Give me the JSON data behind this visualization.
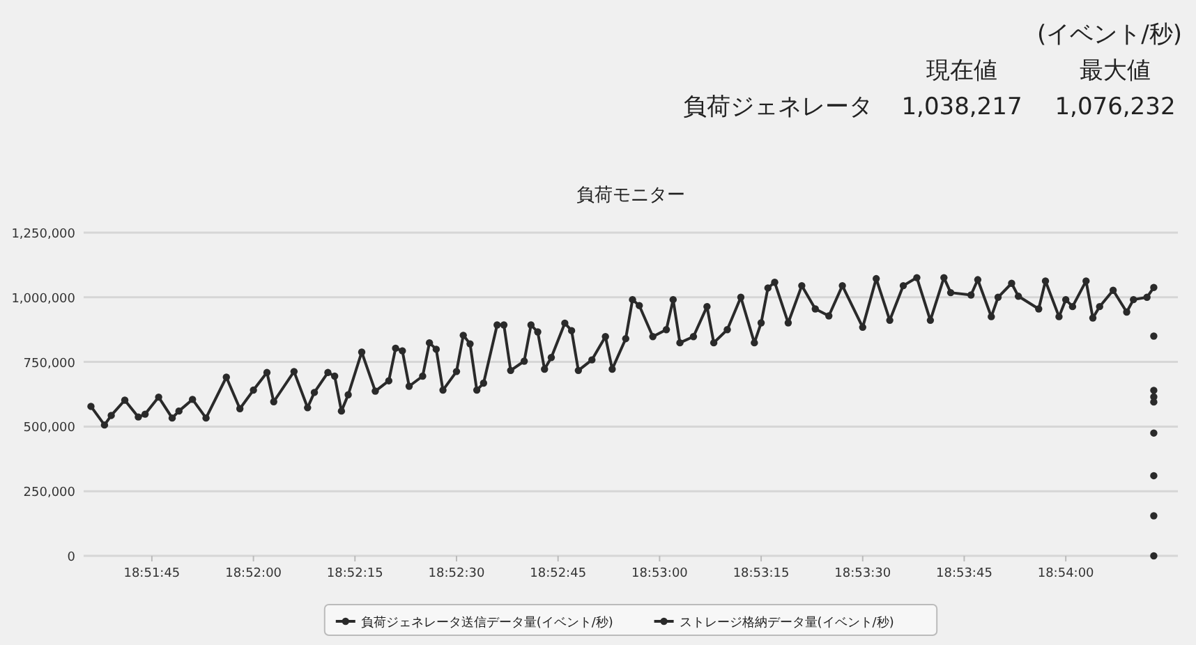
{
  "chart_data": [
    {
      "type": "other",
      "annotations": [
        "(イベント/秒)",
        "現在値",
        "最大値",
        "負荷ジェネレータ",
        "1,038,217",
        "1,076,232"
      ]
    },
    {
      "type": "line",
      "title": "負荷モニター",
      "grid": "y",
      "legend": "bottom",
      "marker": "circle",
      "line_style": "solid",
      "xlim": [
        18.8597,
        18.9046
      ],
      "ylim": [
        0,
        1250000
      ],
      "xticks": [
        {
          "value": 18.8625,
          "label": "18:51:45"
        },
        {
          "value": 18.866667,
          "label": "18:52:00"
        },
        {
          "value": 18.870833,
          "label": "18:52:15"
        },
        {
          "value": 18.875,
          "label": "18:52:30"
        },
        {
          "value": 18.879167,
          "label": "18:52:45"
        },
        {
          "value": 18.883333,
          "label": "18:53:00"
        },
        {
          "value": 18.8875,
          "label": "18:53:15"
        },
        {
          "value": 18.891667,
          "label": "18:53:30"
        },
        {
          "value": 18.895833,
          "label": "18:53:45"
        },
        {
          "value": 18.9,
          "label": "18:54:00"
        }
      ],
      "yticks": [
        {
          "value": 0,
          "label": "0"
        },
        {
          "value": 250000,
          "label": "250,000"
        },
        {
          "value": 500000,
          "label": "500,000"
        },
        {
          "value": 750000,
          "label": "750,000"
        },
        {
          "value": 1000000,
          "label": "1,000,000"
        },
        {
          "value": 1250000,
          "label": "1,250,000"
        }
      ],
      "series": [
        {
          "name": "負荷ジェネレータ送信データ量(イベント/秒)",
          "color": "#2a2a2a",
          "type": "line",
          "x": [
            18.86,
            18.860556,
            18.860833,
            18.861389,
            18.861944,
            18.862222,
            18.862778,
            18.863333,
            18.863611,
            18.864167,
            18.864722,
            18.865556,
            18.866111,
            18.866667,
            18.867222,
            18.8675,
            18.868333,
            18.868889,
            18.869167,
            18.869722,
            18.87,
            18.870278,
            18.870556,
            18.871111,
            18.871667,
            18.872222,
            18.8725,
            18.872778,
            18.873056,
            18.873611,
            18.873889,
            18.874167,
            18.874444,
            18.875,
            18.875278,
            18.875556,
            18.875833,
            18.876111,
            18.876667,
            18.876944,
            18.877222,
            18.877778,
            18.878056,
            18.878333,
            18.878611,
            18.878889,
            18.879444,
            18.879722,
            18.88,
            18.880556,
            18.881111,
            18.881389,
            18.881944,
            18.882222,
            18.8825,
            18.883056,
            18.883611,
            18.883889,
            18.884167,
            18.884722,
            18.885278,
            18.885556,
            18.886111,
            18.886667,
            18.887222,
            18.8875,
            18.887778,
            18.888056,
            18.888611,
            18.889167,
            18.889722,
            18.890278,
            18.890833,
            18.891667,
            18.892222,
            18.892778,
            18.893333,
            18.893889,
            18.894444,
            18.895,
            18.895278,
            18.896111,
            18.896389,
            18.896944,
            18.897222,
            18.897778,
            18.898056,
            18.898889,
            18.899167,
            18.899722,
            18.9,
            18.900278,
            18.900833,
            18.901111,
            18.901389,
            18.901944,
            18.9025,
            18.902778,
            18.903333,
            18.903611
          ],
          "values": [
            578000,
            506000,
            543000,
            602000,
            537000,
            548000,
            614000,
            533000,
            560000,
            605000,
            533000,
            691000,
            569000,
            641000,
            709000,
            596000,
            713000,
            573000,
            632000,
            709000,
            695000,
            560000,
            623000,
            788000,
            637000,
            677000,
            803000,
            793000,
            656000,
            695000,
            824000,
            799000,
            641000,
            713000,
            853000,
            820000,
            641000,
            668000,
            893000,
            893000,
            717000,
            753000,
            893000,
            866000,
            722000,
            767000,
            900000,
            871000,
            717000,
            758000,
            848000,
            722000,
            840000,
            991000,
            968000,
            848000,
            875000,
            991000,
            824000,
            848000,
            964000,
            824000,
            875000,
            1000000,
            824000,
            901000,
            1036000,
            1058000,
            901000,
            1045000,
            955000,
            928000,
            1045000,
            884000,
            1072000,
            911000,
            1045000,
            1076000,
            911000,
            1076000,
            1018000,
            1009000,
            1068000,
            925000,
            1000000,
            1054000,
            1004000,
            955000,
            1063000,
            925000,
            991000,
            964000,
            1063000,
            920000,
            964000,
            1027000,
            943000,
            991000,
            1000000,
            1038000
          ]
        },
        {
          "name": "ストレージ格納データ量(イベント/秒)",
          "color": "#2a2a2a",
          "type": "scatter",
          "x": [
            18.903611,
            18.903611,
            18.903611,
            18.903611,
            18.903611,
            18.903611,
            18.903611,
            18.903611
          ],
          "values": [
            850000,
            640000,
            615000,
            595000,
            475000,
            310000,
            155000,
            0
          ]
        }
      ]
    }
  ]
}
